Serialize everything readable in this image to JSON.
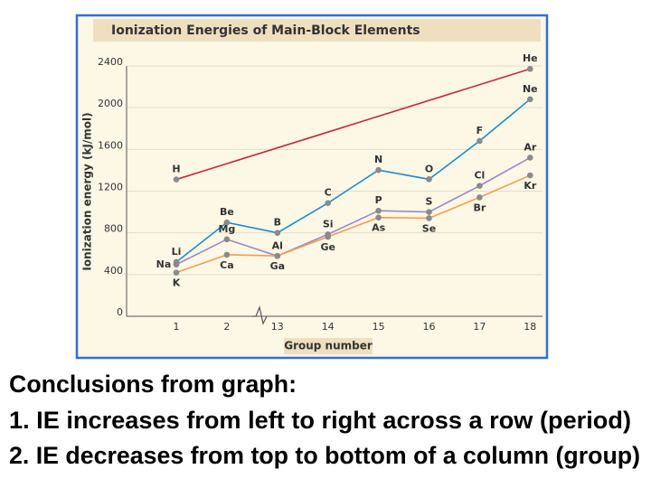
{
  "chart_data": {
    "type": "line",
    "title": "Ionization Energies of Main-Block Elements",
    "xlabel": "Group number",
    "ylabel": "Ionization energy (kJ/mol)",
    "categories": [
      "1",
      "2",
      "13",
      "14",
      "15",
      "16",
      "17",
      "18"
    ],
    "ylim": [
      0,
      2400
    ],
    "yticks": [
      0,
      400,
      800,
      1200,
      1600,
      2000,
      2400
    ],
    "grid": true,
    "marker_color": "#8a8a8a",
    "series": [
      {
        "color": "#c8283c",
        "x": [
          "1",
          "18"
        ],
        "values": [
          1312,
          2372
        ],
        "labels": [
          "H",
          "He"
        ]
      },
      {
        "color": "#1e8cc8",
        "x": [
          "1",
          "2",
          "13",
          "14",
          "15",
          "16",
          "17",
          "18"
        ],
        "values": [
          520,
          900,
          800,
          1086,
          1402,
          1314,
          1681,
          2081
        ],
        "labels": [
          "Li",
          "Be",
          "B",
          "C",
          "N",
          "O",
          "F",
          "Ne"
        ]
      },
      {
        "color": "#9a8ac8",
        "x": [
          "1",
          "2",
          "13",
          "14",
          "15",
          "16",
          "17",
          "18"
        ],
        "values": [
          496,
          738,
          578,
          786,
          1012,
          1000,
          1251,
          1521
        ],
        "labels": [
          "Na",
          "Mg",
          "Al",
          "Si",
          "P",
          "S",
          "Cl",
          "Ar"
        ]
      },
      {
        "color": "#f0a050",
        "x": [
          "1",
          "2",
          "13",
          "14",
          "15",
          "16",
          "17",
          "18"
        ],
        "values": [
          419,
          590,
          579,
          762,
          947,
          941,
          1140,
          1351
        ],
        "labels": [
          "K",
          "Ca",
          "Ga",
          "Ge",
          "As",
          "Se",
          "Br",
          "Kr"
        ]
      }
    ]
  },
  "text": {
    "heading": "Conclusions from graph:",
    "lines": [
      "1. IE increases from left to right across a row (period)",
      "2. IE decreases from top to bottom of a column (group)"
    ]
  }
}
